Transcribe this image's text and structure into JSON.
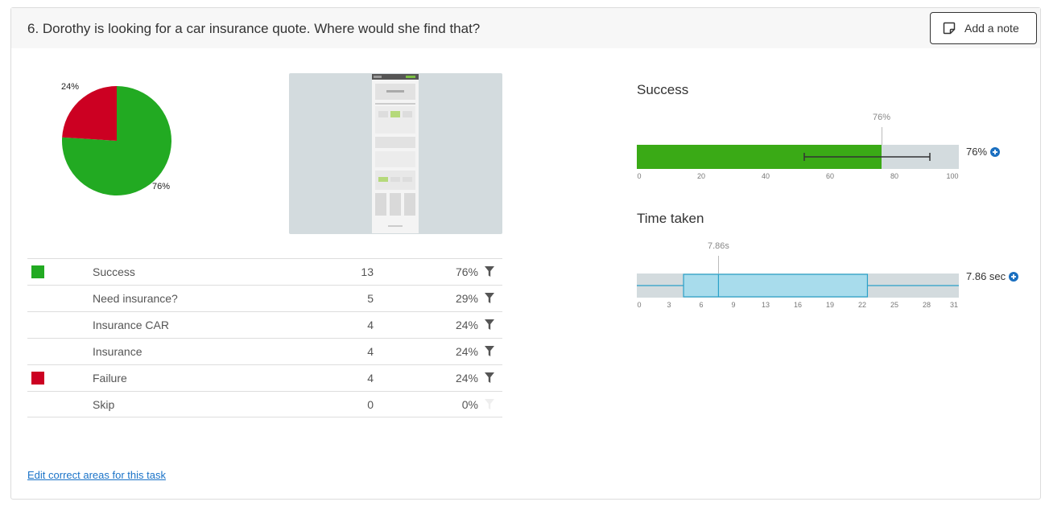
{
  "task": {
    "title": "6. Dorothy is looking for a car insurance quote. Where would she find that?",
    "add_note_label": "Add a note"
  },
  "pie": {
    "slices": [
      {
        "label": "Success",
        "value": 76,
        "display": "76%",
        "color": "#22aa22"
      },
      {
        "label": "Failure",
        "value": 24,
        "display": "24%",
        "color": "#cc0022"
      }
    ]
  },
  "results": {
    "rows": [
      {
        "name": "Success",
        "count": "13",
        "percent": "76%",
        "swatch": "#22aa22",
        "filter_active": true
      },
      {
        "name": "Need insurance?",
        "count": "5",
        "percent": "29%",
        "swatch": "",
        "filter_active": true
      },
      {
        "name": "Insurance CAR",
        "count": "4",
        "percent": "24%",
        "swatch": "",
        "filter_active": true
      },
      {
        "name": "Insurance",
        "count": "4",
        "percent": "24%",
        "swatch": "",
        "filter_active": true
      },
      {
        "name": "Failure",
        "count": "4",
        "percent": "24%",
        "swatch": "#cc0022",
        "filter_active": true
      },
      {
        "name": "Skip",
        "count": "0",
        "percent": "0%",
        "swatch": "",
        "filter_active": false
      }
    ]
  },
  "edit_link": "Edit correct areas for this task",
  "success_chart": {
    "title": "Success",
    "marker_label": "76%",
    "summary": "76%",
    "value": 76,
    "error_low": 52,
    "error_high": 91,
    "axis_max": 100,
    "ticks": [
      "0",
      "20",
      "40",
      "60",
      "80",
      "100"
    ],
    "bar_color": "#3aaa16"
  },
  "time_chart": {
    "title": "Time taken",
    "marker_label": "7.86s",
    "summary": "7.86 sec",
    "median": 7.86,
    "whisker_low": 0,
    "q1": 4.5,
    "q3": 22.2,
    "whisker_high": 31,
    "axis_max": 31,
    "ticks": [
      "0",
      "3",
      "6",
      "9",
      "13",
      "16",
      "19",
      "22",
      "25",
      "28",
      "31"
    ],
    "box_color": "#a8dcec",
    "box_border": "#2aa0c8"
  },
  "icons": {
    "note": "note-icon",
    "filter": "funnel-icon",
    "add": "plus-circle-icon"
  }
}
